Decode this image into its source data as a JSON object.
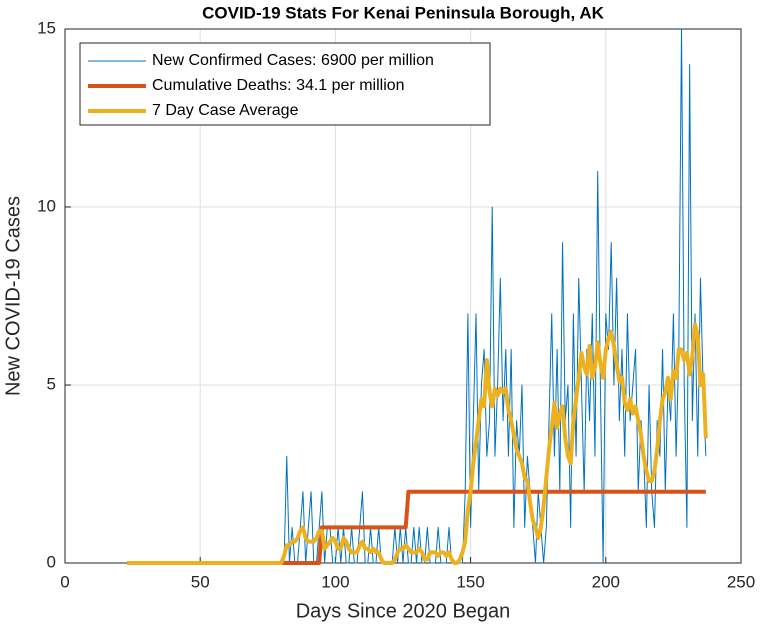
{
  "chart_data": {
    "type": "line",
    "title": "COVID-19 Stats For Kenai Peninsula Borough, AK",
    "xlabel": "Days Since 2020 Began",
    "ylabel": "New COVID-19 Cases",
    "xlim": [
      0,
      250
    ],
    "ylim": [
      0,
      15
    ],
    "xticks": [
      0,
      50,
      100,
      150,
      200,
      250
    ],
    "yticks": [
      0,
      5,
      10,
      15
    ],
    "grid": true,
    "legend": "upper left",
    "x": [
      23,
      24,
      25,
      26,
      27,
      28,
      29,
      30,
      31,
      32,
      33,
      34,
      35,
      36,
      37,
      38,
      39,
      40,
      41,
      42,
      43,
      44,
      45,
      46,
      47,
      48,
      49,
      50,
      51,
      52,
      53,
      54,
      55,
      56,
      57,
      58,
      59,
      60,
      61,
      62,
      63,
      64,
      65,
      66,
      67,
      68,
      69,
      70,
      71,
      72,
      73,
      74,
      75,
      76,
      77,
      78,
      79,
      80,
      81,
      82,
      83,
      84,
      85,
      86,
      87,
      88,
      89,
      90,
      91,
      92,
      93,
      94,
      95,
      96,
      97,
      98,
      99,
      100,
      101,
      102,
      103,
      104,
      105,
      106,
      107,
      108,
      109,
      110,
      111,
      112,
      113,
      114,
      115,
      116,
      117,
      118,
      119,
      120,
      121,
      122,
      123,
      124,
      125,
      126,
      127,
      128,
      129,
      130,
      131,
      132,
      133,
      134,
      135,
      136,
      137,
      138,
      139,
      140,
      141,
      142,
      143,
      144,
      145,
      146,
      147,
      148,
      149,
      150,
      151,
      152,
      153,
      154,
      155,
      156,
      157,
      158,
      159,
      160,
      161,
      162,
      163,
      164,
      165,
      166,
      167,
      168,
      169,
      170,
      171,
      172,
      173,
      174,
      175,
      176,
      177,
      178,
      179,
      180,
      181,
      182,
      183,
      184,
      185,
      186,
      187,
      188,
      189,
      190,
      191,
      192,
      193,
      194,
      195,
      196,
      197,
      198,
      199,
      200,
      201,
      202,
      203,
      204,
      205,
      206,
      207,
      208,
      209,
      210,
      211,
      212,
      213,
      214,
      215,
      216,
      217,
      218,
      219,
      220,
      221,
      222,
      223,
      224,
      225,
      226,
      227,
      228,
      229,
      230,
      231,
      232,
      233,
      234,
      235,
      236,
      237
    ],
    "series": [
      {
        "name": "New Confirmed Cases: 6900 per million",
        "color": "#0072BD",
        "line_width": 1,
        "values": [
          0,
          0,
          0,
          0,
          0,
          0,
          0,
          0,
          0,
          0,
          0,
          0,
          0,
          0,
          0,
          0,
          0,
          0,
          0,
          0,
          0,
          0,
          0,
          0,
          0,
          0,
          0,
          0,
          0,
          0,
          0,
          0,
          0,
          0,
          0,
          0,
          0,
          0,
          0,
          0,
          0,
          0,
          0,
          0,
          0,
          0,
          0,
          0,
          0,
          0,
          0,
          0,
          0,
          0,
          0,
          0,
          0,
          0,
          0,
          3,
          0,
          1,
          0,
          0,
          1,
          2,
          0,
          1,
          2,
          0,
          0,
          1,
          2,
          0,
          1,
          1,
          0,
          0,
          1,
          0,
          1,
          0,
          0,
          1,
          0,
          0,
          1,
          2,
          0,
          0,
          1,
          0,
          0,
          1,
          0,
          0,
          0,
          0,
          0,
          1,
          0,
          1,
          0,
          1,
          0,
          0,
          1,
          0,
          1,
          0,
          0,
          1,
          0,
          0,
          0,
          1,
          0,
          0,
          0,
          1,
          0,
          0,
          0,
          0,
          0,
          2,
          7,
          1,
          4,
          7,
          2,
          5,
          6,
          3,
          4,
          10,
          3,
          5,
          8,
          4,
          6,
          3,
          6,
          1,
          4,
          3,
          5,
          1,
          3,
          2,
          1,
          0,
          2,
          1,
          0,
          1,
          4,
          7,
          3,
          6,
          2,
          9,
          4,
          5,
          1,
          7,
          3,
          8,
          5,
          2,
          6,
          4,
          7,
          3,
          11,
          5,
          0,
          7,
          6,
          9,
          5,
          8,
          4,
          6,
          3,
          7,
          4,
          5,
          6,
          2,
          4,
          3,
          1,
          5,
          2,
          1,
          4,
          3,
          6,
          2,
          5,
          4,
          7,
          3,
          6,
          15,
          5,
          1,
          14,
          4,
          7,
          3,
          8,
          5,
          3
        ]
      },
      {
        "name": "Cumulative Deaths: 34.1 per million",
        "color": "#D95319",
        "line_width": 4,
        "values": [
          0,
          0,
          0,
          0,
          0,
          0,
          0,
          0,
          0,
          0,
          0,
          0,
          0,
          0,
          0,
          0,
          0,
          0,
          0,
          0,
          0,
          0,
          0,
          0,
          0,
          0,
          0,
          0,
          0,
          0,
          0,
          0,
          0,
          0,
          0,
          0,
          0,
          0,
          0,
          0,
          0,
          0,
          0,
          0,
          0,
          0,
          0,
          0,
          0,
          0,
          0,
          0,
          0,
          0,
          0,
          0,
          0,
          0,
          0,
          0,
          0,
          0,
          0,
          0,
          0,
          0,
          0,
          0,
          0,
          0,
          0,
          0,
          1,
          1,
          1,
          1,
          1,
          1,
          1,
          1,
          1,
          1,
          1,
          1,
          1,
          1,
          1,
          1,
          1,
          1,
          1,
          1,
          1,
          1,
          1,
          1,
          1,
          1,
          1,
          1,
          1,
          1,
          1,
          1,
          2,
          2,
          2,
          2,
          2,
          2,
          2,
          2,
          2,
          2,
          2,
          2,
          2,
          2,
          2,
          2,
          2,
          2,
          2,
          2,
          2,
          2,
          2,
          2,
          2,
          2,
          2,
          2,
          2,
          2,
          2,
          2,
          2,
          2,
          2,
          2,
          2,
          2,
          2,
          2,
          2,
          2,
          2,
          2,
          2,
          2,
          2,
          2,
          2,
          2,
          2,
          2,
          2,
          2,
          2,
          2,
          2,
          2,
          2,
          2,
          2,
          2,
          2,
          2,
          2,
          2,
          2,
          2,
          2,
          2,
          2,
          2,
          2,
          2,
          2,
          2,
          2,
          2,
          2,
          2,
          2,
          2,
          2,
          2,
          2,
          2,
          2,
          2,
          2,
          2,
          2,
          2,
          2,
          2,
          2,
          2,
          2,
          2,
          2,
          2,
          2,
          2,
          2,
          2,
          2,
          2,
          2,
          2,
          2,
          2,
          2
        ]
      },
      {
        "name": "7 Day Case Average",
        "color": "#EDB120",
        "line_width": 4,
        "values": [
          0,
          0,
          0,
          0,
          0,
          0,
          0,
          0,
          0,
          0,
          0,
          0,
          0,
          0,
          0,
          0,
          0,
          0,
          0,
          0,
          0,
          0,
          0,
          0,
          0,
          0,
          0,
          0,
          0,
          0,
          0,
          0,
          0,
          0,
          0,
          0,
          0,
          0,
          0,
          0,
          0,
          0,
          0,
          0,
          0,
          0,
          0,
          0,
          0,
          0,
          0,
          0,
          0,
          0,
          0,
          0,
          0,
          0,
          0.2,
          0.5,
          0.5,
          0.6,
          0.6,
          0.7,
          0.9,
          1,
          0.7,
          0.6,
          0.6,
          0.6,
          0.7,
          0.9,
          0.9,
          0.4,
          0.5,
          0.6,
          0.7,
          0.6,
          0.4,
          0.4,
          0.7,
          0.6,
          0.4,
          0.3,
          0.3,
          0.3,
          0.5,
          0.6,
          0.4,
          0.4,
          0.3,
          0.4,
          0.3,
          0.3,
          0.1,
          0,
          0,
          0,
          0,
          0.1,
          0.3,
          0.4,
          0.4,
          0.5,
          0.4,
          0.3,
          0.3,
          0.3,
          0.4,
          0.3,
          0.1,
          0.1,
          0.3,
          0.3,
          0.3,
          0.2,
          0.3,
          0.3,
          0.2,
          0.3,
          0.1,
          0,
          0,
          0.1,
          0.3,
          0.6,
          1.5,
          2,
          2.8,
          3.4,
          4,
          4.6,
          4.4,
          5.7,
          4.8,
          4.4,
          4.9,
          4.7,
          4.9,
          4.8,
          4.9,
          4.3,
          4,
          3.6,
          3.2,
          3,
          2.8,
          2.4,
          2.3,
          1.7,
          1.2,
          1,
          0.7,
          1,
          1.6,
          2.4,
          3.2,
          3.8,
          4.5,
          3.8,
          4.2,
          4.4,
          3.5,
          3,
          2.8,
          4,
          4.6,
          5.2,
          5.9,
          5.5,
          5.3,
          6.1,
          5.2,
          5.5,
          6.2,
          5.6,
          5.2,
          6,
          6.3,
          6.5,
          6.1,
          5.6,
          5.1,
          5.2,
          4.5,
          4.3,
          4.6,
          4.2,
          4.4,
          4,
          3.6,
          3,
          2.6,
          2.3,
          2.3,
          2.6,
          3.2,
          4,
          4.6,
          4.8,
          5.2,
          4.6,
          5.4,
          5.2,
          6,
          6,
          5.7,
          5.9,
          5.3,
          5.8,
          6.7,
          6.4,
          5,
          5.3,
          3.5
        ]
      }
    ]
  }
}
